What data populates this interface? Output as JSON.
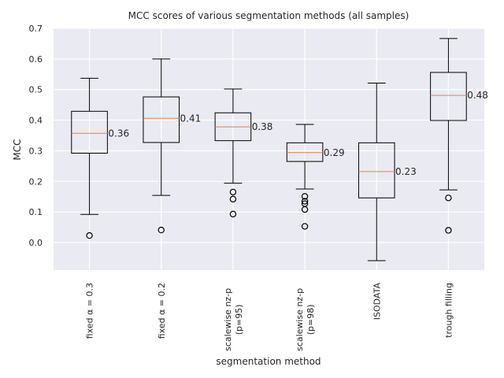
{
  "chart_data": {
    "type": "box",
    "title": "MCC scores of various segmentation methods (all samples)",
    "xlabel": "segmentation method",
    "ylabel": "MCC",
    "ylim": [
      -0.09,
      0.7
    ],
    "yticks": [
      0.0,
      0.1,
      0.2,
      0.3,
      0.4,
      0.5,
      0.6,
      0.7
    ],
    "ytick_labels": [
      "0.0",
      "0.1",
      "0.2",
      "0.3",
      "0.4",
      "0.5",
      "0.6",
      "0.7"
    ],
    "grid": true,
    "colors": {
      "plot_background": "#eaeaf2",
      "grid": "#ffffff",
      "box": "#000000",
      "median": "#dd8452"
    },
    "categories": [
      {
        "label_lines": [
          "fixed α = 0.3"
        ],
        "whisker_low": 0.092,
        "q1": 0.292,
        "median": 0.357,
        "q3": 0.429,
        "whisker_high": 0.537,
        "median_label": "0.36",
        "outliers": [
          0.023
        ]
      },
      {
        "label_lines": [
          "fixed α = 0.2"
        ],
        "whisker_low": 0.154,
        "q1": 0.327,
        "median": 0.406,
        "q3": 0.476,
        "whisker_high": 0.6,
        "median_label": "0.41",
        "outliers": [
          0.041
        ]
      },
      {
        "label_lines": [
          "scalewise nz-p",
          "(p=95)"
        ],
        "whisker_low": 0.194,
        "q1": 0.333,
        "median": 0.378,
        "q3": 0.424,
        "whisker_high": 0.502,
        "median_label": "0.38",
        "outliers": [
          0.165,
          0.142,
          0.093
        ]
      },
      {
        "label_lines": [
          "scalewise nz-p",
          "(p=98)"
        ],
        "whisker_low": 0.175,
        "q1": 0.265,
        "median": 0.294,
        "q3": 0.326,
        "whisker_high": 0.386,
        "median_label": "0.29",
        "outliers": [
          0.151,
          0.135,
          0.127,
          0.108,
          0.053
        ]
      },
      {
        "label_lines": [
          "ISODATA"
        ],
        "whisker_low": -0.059,
        "q1": 0.146,
        "median": 0.232,
        "q3": 0.326,
        "whisker_high": 0.521,
        "median_label": "0.23",
        "outliers": []
      },
      {
        "label_lines": [
          "trough filling"
        ],
        "whisker_low": 0.172,
        "q1": 0.399,
        "median": 0.481,
        "q3": 0.556,
        "whisker_high": 0.667,
        "median_label": "0.48",
        "outliers": [
          0.146,
          0.04
        ]
      }
    ]
  }
}
